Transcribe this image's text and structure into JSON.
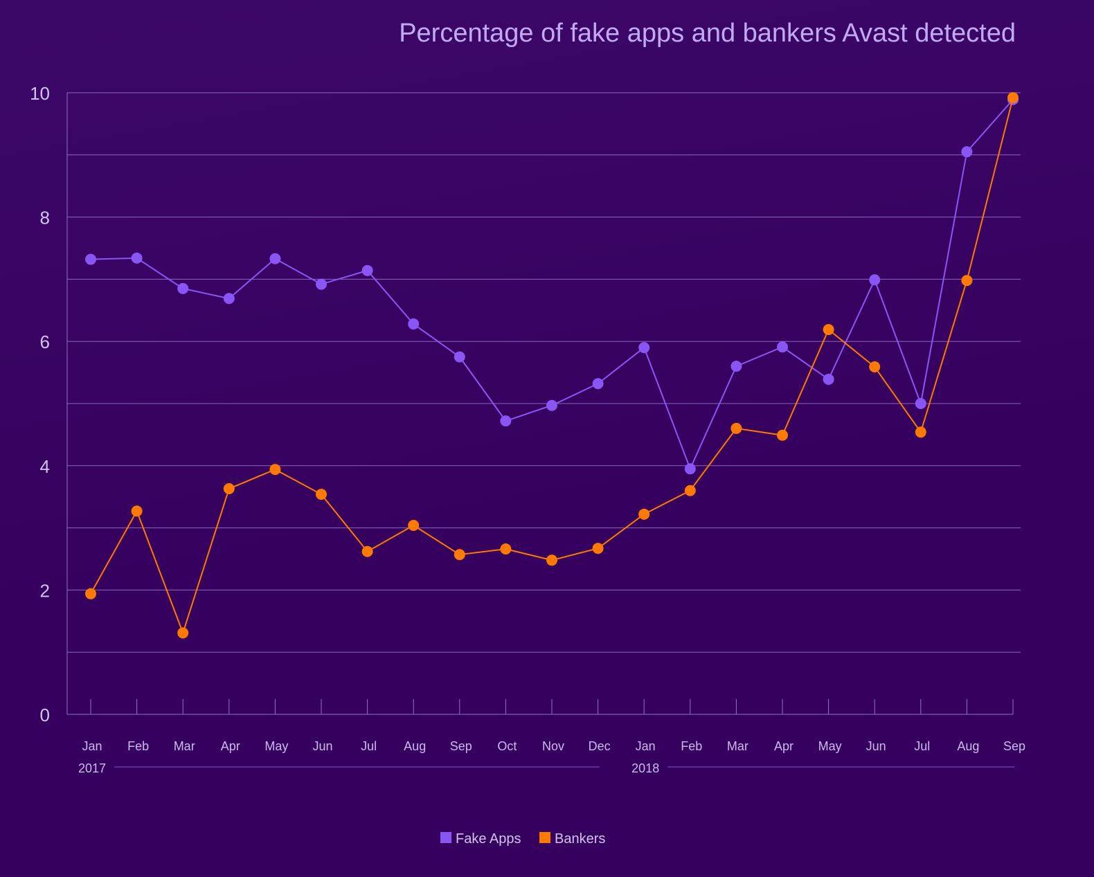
{
  "chart_data": {
    "type": "line",
    "title": "Percentage of fake apps and bankers Avast detected",
    "xlabel": "",
    "ylabel": "",
    "ylim": [
      0,
      10
    ],
    "yticks": [
      0,
      2,
      4,
      6,
      8,
      10
    ],
    "grid": true,
    "legend_position": "bottom-center",
    "categories": [
      "Jan",
      "Feb",
      "Mar",
      "Apr",
      "May",
      "Jun",
      "Jul",
      "Aug",
      "Sep",
      "Oct",
      "Nov",
      "Dec",
      "Jan",
      "Feb",
      "Mar",
      "Apr",
      "May",
      "Jun",
      "Jul",
      "Aug",
      "Sep"
    ],
    "year_groups": [
      {
        "label": "2017",
        "start": 0,
        "end": 11
      },
      {
        "label": "2018",
        "start": 12,
        "end": 20
      }
    ],
    "series": [
      {
        "name": "Fake Apps",
        "color": "#8a55f5",
        "values": [
          7.32,
          7.34,
          6.85,
          6.69,
          7.33,
          6.92,
          7.14,
          6.28,
          5.75,
          4.72,
          4.97,
          5.32,
          5.9,
          3.95,
          5.6,
          5.91,
          5.39,
          6.99,
          5.0,
          9.05,
          9.89
        ]
      },
      {
        "name": "Bankers",
        "color": "#ff7a00",
        "values": [
          1.94,
          3.27,
          1.31,
          3.63,
          3.94,
          3.54,
          2.62,
          3.04,
          2.57,
          2.66,
          2.48,
          2.67,
          3.22,
          3.6,
          4.6,
          4.49,
          6.19,
          5.59,
          4.54,
          6.98,
          9.92
        ]
      }
    ]
  }
}
